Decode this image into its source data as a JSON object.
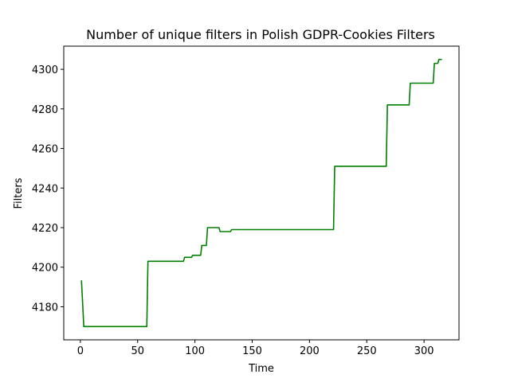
{
  "chart_data": {
    "type": "line",
    "title": "Number of unique filters in Polish GDPR-Cookies Filters",
    "xlabel": "Time",
    "ylabel": "Filters",
    "xlim": [
      -14.5,
      330.5
    ],
    "ylim": [
      4163.3,
      4311.7
    ],
    "xticks": [
      0,
      50,
      100,
      150,
      200,
      250,
      300
    ],
    "yticks": [
      4180,
      4200,
      4220,
      4240,
      4260,
      4280,
      4300
    ],
    "grid": false,
    "series": [
      {
        "color": "#008000",
        "x": [
          1,
          3,
          58,
          59,
          90,
          91,
          97,
          98,
          105,
          106,
          110,
          111,
          121,
          122,
          131,
          132,
          221,
          222,
          267,
          268,
          287,
          288,
          308,
          309,
          312,
          313,
          315
        ],
        "y": [
          4193,
          4170,
          4170,
          4203,
          4203,
          4205,
          4205,
          4206,
          4206,
          4211,
          4211,
          4220,
          4220,
          4218,
          4218,
          4219,
          4219,
          4251,
          4251,
          4282,
          4282,
          4293,
          4293,
          4303,
          4303,
          4305,
          4305
        ]
      }
    ]
  }
}
